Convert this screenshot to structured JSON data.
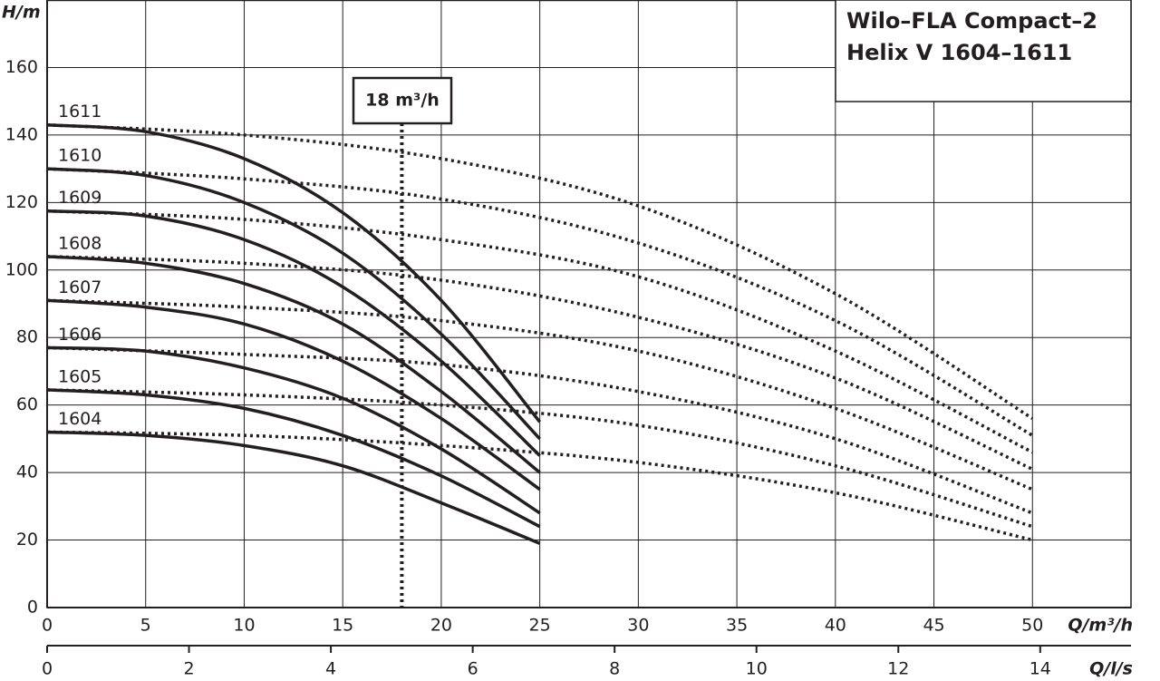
{
  "chart_data": {
    "type": "line",
    "title": [
      "Wilo–FLA Compact–2",
      "Helix V 1604–1611"
    ],
    "ylabel": "H/m",
    "xlabel": "Q/m³/h",
    "x2label": "Q/l/s",
    "xlim": [
      0,
      55
    ],
    "xticks": [
      0,
      5,
      10,
      15,
      20,
      25,
      30,
      35,
      40,
      45,
      50
    ],
    "x2lim": [
      0,
      15.28
    ],
    "x2ticks": [
      0,
      2,
      4,
      6,
      8,
      10,
      12,
      14
    ],
    "ylim": [
      0,
      180
    ],
    "yticks": [
      0,
      20,
      40,
      60,
      80,
      100,
      120,
      140,
      160
    ],
    "grid": true,
    "x": [
      0,
      5,
      10,
      15,
      20,
      25
    ],
    "x_dotted": [
      0,
      10,
      20,
      30,
      40,
      50
    ],
    "series": [
      {
        "name": "1611",
        "color": "#231f20",
        "values": [
          143,
          141,
          133,
          117,
          91,
          55
        ],
        "dotted_values": [
          143,
          140,
          133,
          119,
          93,
          56
        ]
      },
      {
        "name": "1610",
        "color": "#231f20",
        "values": [
          130,
          128,
          120,
          105,
          81,
          50
        ],
        "dotted_values": [
          130,
          127,
          121,
          108,
          85,
          51
        ]
      },
      {
        "name": "1609",
        "color": "#231f20",
        "values": [
          117.5,
          116,
          109,
          95,
          73,
          45
        ],
        "dotted_values": [
          117.5,
          115,
          109,
          98,
          76,
          46
        ]
      },
      {
        "name": "1608",
        "color": "#231f20",
        "values": [
          104,
          102,
          96,
          84,
          64,
          40
        ],
        "dotted_values": [
          104,
          102,
          97,
          86,
          68,
          41
        ]
      },
      {
        "name": "1607",
        "color": "#231f20",
        "values": [
          91,
          89,
          84,
          73,
          56,
          35
        ],
        "dotted_values": [
          91,
          89,
          85,
          76,
          59,
          35
        ]
      },
      {
        "name": "1606",
        "color": "#231f20",
        "values": [
          77,
          76,
          71,
          62,
          47,
          28
        ],
        "dotted_values": [
          77,
          75,
          72,
          64,
          50,
          28
        ]
      },
      {
        "name": "1605",
        "color": "#231f20",
        "values": [
          64.5,
          63,
          59,
          51,
          39,
          24
        ],
        "dotted_values": [
          64.5,
          63,
          60,
          54,
          42,
          24
        ]
      },
      {
        "name": "1604",
        "color": "#231f20",
        "values": [
          52,
          51,
          48,
          42,
          31,
          19
        ],
        "dotted_values": [
          52,
          51,
          48,
          43,
          34,
          20
        ]
      }
    ],
    "annotation": {
      "x": 18,
      "label": "18 m³/h"
    }
  }
}
